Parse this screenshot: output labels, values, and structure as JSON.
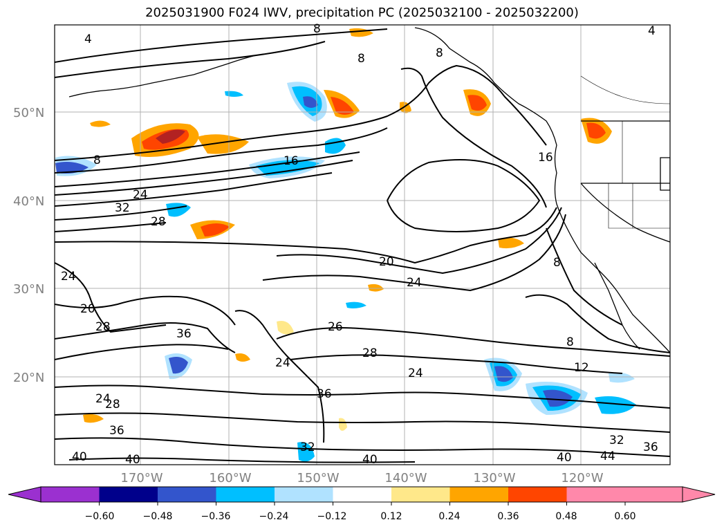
{
  "title": "2025031900 F024 IWV, precipitation PC (2025032100 - 2025032200)",
  "lat_labels": [
    "50°N",
    "40°N",
    "30°N",
    "20°N"
  ],
  "lon_labels": [
    "170°W",
    "160°W",
    "150°W",
    "140°W",
    "130°W",
    "120°W"
  ],
  "colorbar": {
    "ticks": [
      "−0.60",
      "−0.48",
      "−0.36",
      "−0.24",
      "−0.12",
      "0.12",
      "0.24",
      "0.36",
      "0.48",
      "0.60"
    ],
    "colors": [
      "#9b30d0",
      "#00008b",
      "#3355cc",
      "#00bfff",
      "#b0e2ff",
      "#ffffff",
      "#ffe88a",
      "#ffa500",
      "#ff4500",
      "#b22222",
      "#ff88aa"
    ]
  },
  "contour_labels": [
    "4",
    "8",
    "8",
    "4",
    "8",
    "16",
    "16",
    "24",
    "32",
    "28",
    "20",
    "24",
    "24",
    "20",
    "28",
    "36",
    "26",
    "28",
    "24",
    "24",
    "36",
    "24",
    "28",
    "36",
    "40",
    "40",
    "32",
    "40",
    "8",
    "12",
    "32",
    "36",
    "40",
    "44",
    "8",
    "8"
  ],
  "colors": {
    "gridline": "#b0b0b0",
    "axis_label": "#808080",
    "contour": "#000000"
  }
}
